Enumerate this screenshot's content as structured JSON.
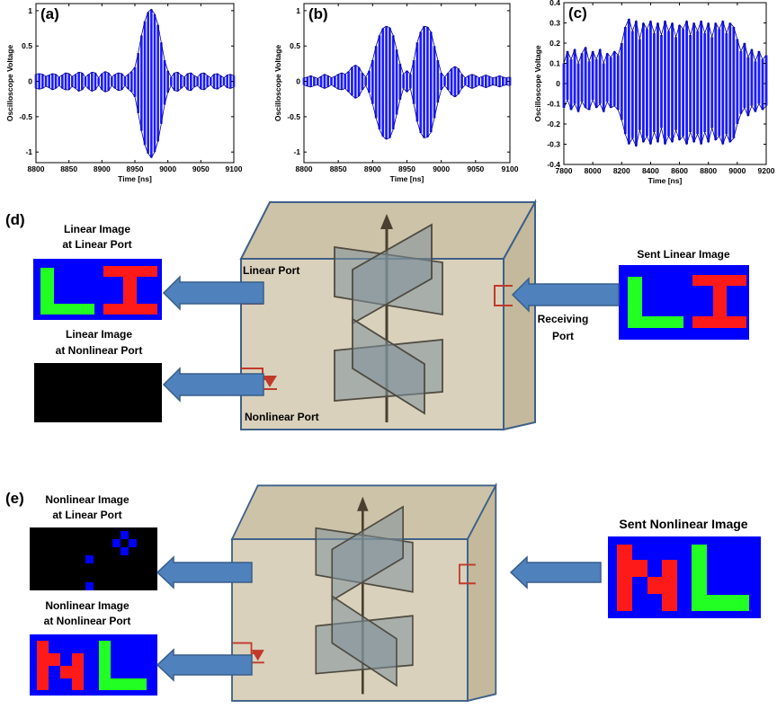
{
  "chart_data": [
    {
      "type": "envelope",
      "panel_label": "(a)",
      "xlabel": "Time [ns]",
      "ylabel": "Oscilloscope Voltage",
      "xlim": [
        8800,
        9100
      ],
      "xticks": [
        8800,
        8850,
        8900,
        8950,
        9000,
        9050,
        9100
      ],
      "ylim": [
        -1.15,
        1.1
      ],
      "yticks": [
        -1,
        -0.5,
        0,
        0.5,
        1
      ],
      "color": "#1a1aff",
      "x": [
        8800,
        8805,
        8810,
        8815,
        8820,
        8825,
        8830,
        8835,
        8840,
        8845,
        8850,
        8855,
        8860,
        8865,
        8870,
        8875,
        8880,
        8885,
        8890,
        8895,
        8900,
        8905,
        8910,
        8915,
        8920,
        8925,
        8930,
        8935,
        8940,
        8945,
        8950,
        8955,
        8960,
        8965,
        8970,
        8975,
        8980,
        8985,
        8990,
        8995,
        9000,
        9005,
        9010,
        9015,
        9020,
        9025,
        9030,
        9035,
        9040,
        9045,
        9050,
        9055,
        9060,
        9065,
        9070,
        9075,
        9080,
        9085,
        9090,
        9095,
        9100
      ],
      "upper": [
        0.1,
        0.11,
        0.1,
        0.07,
        0.09,
        0.11,
        0.1,
        0.06,
        0.09,
        0.12,
        0.11,
        0.07,
        0.1,
        0.13,
        0.12,
        0.06,
        0.1,
        0.13,
        0.12,
        0.05,
        0.11,
        0.14,
        0.12,
        0.06,
        0.1,
        0.12,
        0.11,
        0.06,
        0.1,
        0.14,
        0.2,
        0.4,
        0.65,
        0.85,
        0.98,
        1.02,
        0.95,
        0.8,
        0.55,
        0.3,
        0.15,
        0.06,
        0.12,
        0.13,
        0.09,
        0.06,
        0.11,
        0.12,
        0.08,
        0.06,
        0.11,
        0.12,
        0.08,
        0.05,
        0.1,
        0.11,
        0.08,
        0.05,
        0.09,
        0.1,
        0.08
      ],
      "lower": [
        -0.1,
        -0.11,
        -0.1,
        -0.07,
        -0.09,
        -0.12,
        -0.1,
        -0.06,
        -0.1,
        -0.12,
        -0.12,
        -0.07,
        -0.1,
        -0.14,
        -0.12,
        -0.06,
        -0.11,
        -0.14,
        -0.12,
        -0.05,
        -0.12,
        -0.15,
        -0.13,
        -0.06,
        -0.1,
        -0.13,
        -0.12,
        -0.06,
        -0.11,
        -0.15,
        -0.22,
        -0.45,
        -0.7,
        -0.9,
        -1.02,
        -1.08,
        -1.0,
        -0.85,
        -0.6,
        -0.33,
        -0.16,
        -0.06,
        -0.13,
        -0.14,
        -0.1,
        -0.06,
        -0.12,
        -0.13,
        -0.08,
        -0.06,
        -0.11,
        -0.12,
        -0.08,
        -0.05,
        -0.1,
        -0.11,
        -0.08,
        -0.05,
        -0.09,
        -0.1,
        -0.08
      ]
    },
    {
      "type": "envelope",
      "panel_label": "(b)",
      "xlabel": "Time [ns]",
      "ylabel": "Oscilloscope Voltage",
      "xlim": [
        8800,
        9100
      ],
      "xticks": [
        8800,
        8850,
        8900,
        8950,
        9000,
        9050,
        9100
      ],
      "ylim": [
        -1.15,
        1.1
      ],
      "yticks": [
        -1,
        -0.5,
        0,
        0.5,
        1
      ],
      "color": "#1a1aff",
      "x": [
        8800,
        8805,
        8810,
        8815,
        8820,
        8825,
        8830,
        8835,
        8840,
        8845,
        8850,
        8855,
        8860,
        8865,
        8870,
        8875,
        8880,
        8885,
        8890,
        8895,
        8900,
        8905,
        8910,
        8915,
        8920,
        8925,
        8930,
        8935,
        8940,
        8945,
        8950,
        8955,
        8960,
        8965,
        8970,
        8975,
        8980,
        8985,
        8990,
        8995,
        9000,
        9005,
        9010,
        9015,
        9020,
        9025,
        9030,
        9035,
        9040,
        9045,
        9050,
        9055,
        9060,
        9065,
        9070,
        9075,
        9080,
        9085,
        9090,
        9095,
        9100
      ],
      "upper": [
        0.05,
        0.06,
        0.08,
        0.06,
        0.04,
        0.07,
        0.1,
        0.08,
        0.05,
        0.07,
        0.1,
        0.12,
        0.1,
        0.14,
        0.2,
        0.23,
        0.2,
        0.12,
        0.06,
        0.15,
        0.3,
        0.5,
        0.65,
        0.75,
        0.78,
        0.76,
        0.65,
        0.45,
        0.25,
        0.1,
        0.15,
        0.1,
        0.3,
        0.55,
        0.7,
        0.78,
        0.77,
        0.7,
        0.5,
        0.3,
        0.12,
        0.06,
        0.12,
        0.18,
        0.21,
        0.18,
        0.1,
        0.05,
        0.08,
        0.1,
        0.08,
        0.05,
        0.07,
        0.09,
        0.07,
        0.05,
        0.06,
        0.08,
        0.06,
        0.05,
        0.06
      ],
      "lower": [
        -0.05,
        -0.07,
        -0.08,
        -0.06,
        -0.05,
        -0.08,
        -0.1,
        -0.08,
        -0.05,
        -0.08,
        -0.11,
        -0.12,
        -0.1,
        -0.15,
        -0.2,
        -0.24,
        -0.21,
        -0.12,
        -0.06,
        -0.16,
        -0.32,
        -0.52,
        -0.68,
        -0.78,
        -0.82,
        -0.8,
        -0.68,
        -0.47,
        -0.26,
        -0.1,
        -0.15,
        -0.1,
        -0.32,
        -0.57,
        -0.73,
        -0.8,
        -0.79,
        -0.72,
        -0.52,
        -0.3,
        -0.12,
        -0.06,
        -0.12,
        -0.19,
        -0.22,
        -0.18,
        -0.1,
        -0.05,
        -0.08,
        -0.1,
        -0.08,
        -0.05,
        -0.07,
        -0.09,
        -0.07,
        -0.05,
        -0.06,
        -0.08,
        -0.06,
        -0.05,
        -0.06
      ]
    },
    {
      "type": "envelope",
      "panel_label": "(c)",
      "xlabel": "Time [ns]",
      "ylabel": "Oscilloscope Voltage",
      "xlim": [
        7800,
        9200
      ],
      "xticks": [
        7800,
        8000,
        8200,
        8400,
        8600,
        8800,
        9000,
        9200
      ],
      "ylim": [
        -0.4,
        0.4
      ],
      "yticks": [
        -0.4,
        -0.3,
        -0.2,
        -0.1,
        0,
        0.1,
        0.2,
        0.3,
        0.4
      ],
      "color": "#1a1aff",
      "x": [
        7800,
        7825,
        7850,
        7875,
        7900,
        7925,
        7950,
        7975,
        8000,
        8025,
        8050,
        8075,
        8100,
        8125,
        8150,
        8175,
        8200,
        8225,
        8250,
        8275,
        8300,
        8325,
        8350,
        8375,
        8400,
        8425,
        8450,
        8475,
        8500,
        8525,
        8550,
        8575,
        8600,
        8625,
        8650,
        8675,
        8700,
        8725,
        8750,
        8775,
        8800,
        8825,
        8850,
        8875,
        8900,
        8925,
        8950,
        8975,
        9000,
        9025,
        9050,
        9075,
        9100,
        9125,
        9150,
        9175,
        9200
      ],
      "upper": [
        0.1,
        0.16,
        0.12,
        0.17,
        0.1,
        0.15,
        0.18,
        0.11,
        0.16,
        0.12,
        0.17,
        0.1,
        0.15,
        0.13,
        0.16,
        0.14,
        0.2,
        0.28,
        0.32,
        0.26,
        0.31,
        0.22,
        0.3,
        0.27,
        0.31,
        0.25,
        0.3,
        0.24,
        0.31,
        0.26,
        0.3,
        0.23,
        0.29,
        0.27,
        0.31,
        0.24,
        0.3,
        0.26,
        0.31,
        0.25,
        0.3,
        0.23,
        0.3,
        0.27,
        0.31,
        0.25,
        0.3,
        0.28,
        0.22,
        0.16,
        0.2,
        0.13,
        0.17,
        0.11,
        0.16,
        0.12,
        0.14
      ],
      "lower": [
        -0.12,
        -0.08,
        -0.13,
        -0.1,
        -0.14,
        -0.09,
        -0.12,
        -0.13,
        -0.08,
        -0.12,
        -0.1,
        -0.14,
        -0.09,
        -0.12,
        -0.11,
        -0.13,
        -0.18,
        -0.25,
        -0.3,
        -0.27,
        -0.31,
        -0.23,
        -0.29,
        -0.26,
        -0.3,
        -0.24,
        -0.29,
        -0.22,
        -0.3,
        -0.26,
        -0.29,
        -0.23,
        -0.28,
        -0.26,
        -0.3,
        -0.24,
        -0.29,
        -0.25,
        -0.3,
        -0.24,
        -0.29,
        -0.22,
        -0.28,
        -0.26,
        -0.3,
        -0.25,
        -0.29,
        -0.27,
        -0.2,
        -0.15,
        -0.12,
        -0.16,
        -0.11,
        -0.14,
        -0.1,
        -0.13,
        -0.11
      ]
    }
  ],
  "diagrams": [
    {
      "panel_label": "(d)",
      "output_linear": [
        "Linear Image",
        "at Linear Port"
      ],
      "output_nonlinear": [
        "Linear Image",
        "at Nonlinear Port"
      ],
      "sent": "Sent Linear Image",
      "linear_port": "Linear Port",
      "nonlinear_port": "Nonlinear Port",
      "receiving_port": [
        "Receiving",
        "Port"
      ]
    },
    {
      "panel_label": "(e)",
      "output_linear": [
        "Nonlinear Image",
        "at Linear Port"
      ],
      "output_nonlinear": [
        "Nonlinear Image",
        "at Nonlinear Port"
      ],
      "sent": "Sent Nonlinear Image"
    }
  ]
}
